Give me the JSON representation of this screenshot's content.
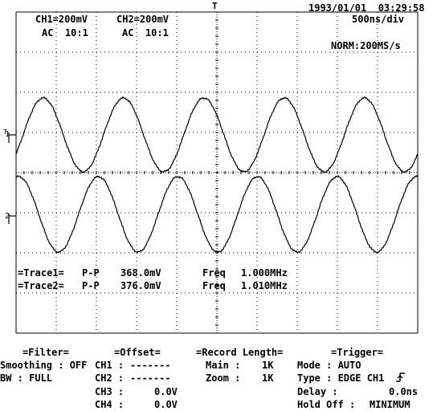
{
  "header": {
    "datetime": "1993/01/01  03:29:58",
    "ch1_scale": "CH1=200mV",
    "ch1_coupling": "AC  10:1",
    "ch2_scale": "CH2=200mV",
    "ch2_coupling": "AC  10:1",
    "timebase": "500ns/div",
    "sample_mode": "NORM:200MS/s"
  },
  "markers": {
    "trigger_pos": "T",
    "ch1": "1",
    "ch2": "2",
    "trigger_level": "T"
  },
  "measurements": [
    {
      "label": "=Trace1=",
      "type": "P-P",
      "value": "368.0mV",
      "freq_label": "Freq",
      "freq": "1.000MHz"
    },
    {
      "label": "=Trace2=",
      "type": "P-P",
      "value": "376.0mV",
      "freq_label": "Freq",
      "freq": "1.010MHz"
    }
  ],
  "panels": {
    "filter": {
      "title": "=Filter=",
      "rows": [
        {
          "label": "Smoothing : OFF"
        },
        {
          "label": "BW : FULL"
        }
      ]
    },
    "offset": {
      "title": "=Offset=",
      "rows": [
        {
          "label": "CH1 :",
          "value": "-------"
        },
        {
          "label": "CH2 :",
          "value": "-------"
        },
        {
          "label": "CH3 :",
          "value": "0.0V"
        },
        {
          "label": "CH4 :",
          "value": "0.0V"
        }
      ]
    },
    "record": {
      "title": "=Record Length=",
      "rows": [
        {
          "label": "Main :",
          "value": "1K"
        },
        {
          "label": "Zoom :",
          "value": "1K"
        }
      ]
    },
    "trigger": {
      "title": "=Trigger=",
      "rows": [
        {
          "label": "Mode : AUTO",
          "value": ""
        },
        {
          "label": "Type : EDGE CH1",
          "value": ""
        },
        {
          "label": "Delay :",
          "value": "0.0ns"
        },
        {
          "label": "Hold Off :",
          "value": "MINIMUM"
        }
      ]
    }
  },
  "chart_data": {
    "type": "line",
    "xlabel": "",
    "ylabel": "",
    "time_per_div": "500ns",
    "series": [
      {
        "name": "Trace1",
        "peak_to_peak_mV": 368.0,
        "freq_MHz": 1.0
      },
      {
        "name": "Trace2",
        "peak_to_peak_mV": 376.0,
        "freq_MHz": 1.01
      }
    ]
  }
}
